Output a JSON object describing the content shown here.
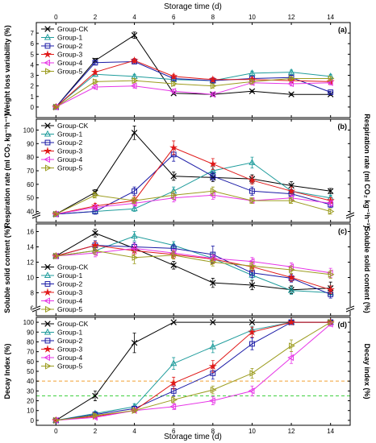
{
  "figure": {
    "top_xlabel": "Storage time (d)",
    "bottom_xlabel": "Storage time (d)"
  },
  "series_styles": [
    {
      "name": "Group-CK",
      "color": "#000000",
      "marker": "x"
    },
    {
      "name": "Group-1",
      "color": "#1f9c9c",
      "marker": "triangle-up"
    },
    {
      "name": "Group-2",
      "color": "#1a1aa6",
      "marker": "square"
    },
    {
      "name": "Group-3",
      "color": "#e01919",
      "marker": "star"
    },
    {
      "name": "Group-4",
      "color": "#e636e6",
      "marker": "triangle-left"
    },
    {
      "name": "Group-5",
      "color": "#9c9c1f",
      "marker": "triangle-right"
    }
  ],
  "chart_data": [
    {
      "type": "line",
      "panel": "(a)",
      "ylabel": "Weight loss variability (%)",
      "x": [
        0,
        2,
        4,
        6,
        8,
        10,
        12,
        14
      ],
      "xlim": [
        -1,
        15
      ],
      "ylim": [
        -1,
        8
      ],
      "yticks": [
        0,
        1,
        2,
        3,
        4,
        5,
        6,
        7
      ],
      "xticks": [
        0,
        2,
        4,
        6,
        8,
        10,
        12,
        14
      ],
      "legend": "top-left",
      "series": [
        {
          "name": "Group-CK",
          "values": [
            0,
            4.4,
            6.8,
            1.3,
            1.2,
            1.5,
            1.2,
            1.2
          ],
          "errors": [
            0.1,
            0.2,
            0.3,
            0.1,
            0.1,
            0.1,
            0.1,
            0.1
          ]
        },
        {
          "name": "Group-1",
          "values": [
            0,
            3.1,
            2.9,
            2.6,
            2.5,
            3.2,
            3.3,
            2.9
          ],
          "errors": [
            0.1,
            0.2,
            0.2,
            0.2,
            0.2,
            0.2,
            0.2,
            0.2
          ]
        },
        {
          "name": "Group-2",
          "values": [
            0,
            4.2,
            4.3,
            2.7,
            2.5,
            2.7,
            2.8,
            1.4
          ],
          "errors": [
            0.1,
            0.2,
            0.2,
            0.2,
            0.2,
            0.2,
            0.2,
            0.1
          ]
        },
        {
          "name": "Group-3",
          "values": [
            0,
            3.3,
            4.4,
            2.9,
            2.6,
            2.6,
            2.5,
            2.4
          ],
          "errors": [
            0.1,
            0.2,
            0.2,
            0.2,
            0.2,
            0.2,
            0.2,
            0.2
          ]
        },
        {
          "name": "Group-4",
          "values": [
            0,
            1.9,
            2.0,
            1.5,
            1.2,
            2.3,
            2.2,
            2.3
          ],
          "errors": [
            0.1,
            0.2,
            0.2,
            0.2,
            0.2,
            0.2,
            0.2,
            0.2
          ]
        },
        {
          "name": "Group-5",
          "values": [
            0,
            2.4,
            2.5,
            2.2,
            2.0,
            2.4,
            2.7,
            2.7
          ],
          "errors": [
            0.1,
            0.2,
            0.2,
            0.2,
            0.2,
            0.2,
            0.2,
            0.2
          ]
        }
      ]
    },
    {
      "type": "line",
      "panel": "(b)",
      "ylabel": "Respiration rate (ml CO₂ kg⁻¹h⁻¹)",
      "ylabel_right": "Respiration rate (ml CO₂ kg⁻¹h⁻¹)",
      "x": [
        0,
        2,
        4,
        6,
        8,
        10,
        12,
        14
      ],
      "xlim": [
        -1,
        15
      ],
      "ylim": [
        32,
        108
      ],
      "axis_break": true,
      "yticks": [
        40,
        50,
        60,
        70,
        80,
        90,
        100
      ],
      "legend": "top-left",
      "series": [
        {
          "name": "Group-CK",
          "values": [
            38,
            54,
            98,
            66,
            65,
            64,
            59,
            55
          ],
          "errors": [
            1,
            2,
            5,
            3,
            3,
            3,
            3,
            2
          ]
        },
        {
          "name": "Group-1",
          "values": [
            38,
            40,
            42,
            55,
            70,
            76,
            55,
            50
          ],
          "errors": [
            1,
            2,
            2,
            3,
            3,
            4,
            3,
            2
          ]
        },
        {
          "name": "Group-2",
          "values": [
            38,
            40,
            55,
            82,
            66,
            55,
            53,
            45
          ],
          "errors": [
            1,
            2,
            3,
            5,
            3,
            3,
            3,
            2
          ]
        },
        {
          "name": "Group-3",
          "values": [
            38,
            44,
            48,
            87,
            75,
            63,
            55,
            48
          ],
          "errors": [
            1,
            2,
            3,
            5,
            4,
            3,
            3,
            2
          ]
        },
        {
          "name": "Group-4",
          "values": [
            38,
            43,
            46,
            50,
            52,
            48,
            50,
            46
          ],
          "errors": [
            1,
            2,
            2,
            3,
            3,
            2,
            2,
            2
          ]
        },
        {
          "name": "Group-5",
          "values": [
            38,
            52,
            48,
            52,
            55,
            48,
            48,
            40
          ],
          "errors": [
            1,
            2,
            2,
            3,
            3,
            2,
            2,
            2
          ]
        }
      ]
    },
    {
      "type": "line",
      "panel": "(c)",
      "ylabel": "Soluble solid content (%)",
      "ylabel_right": "Soluble solid content (%)",
      "x": [
        0,
        2,
        4,
        6,
        8,
        10,
        12,
        14
      ],
      "xlim": [
        -1,
        15
      ],
      "ylim": [
        5,
        17
      ],
      "axis_break": true,
      "yticks": [
        6,
        8,
        10,
        12,
        14,
        16
      ],
      "legend": "bottom-left",
      "series": [
        {
          "name": "Group-CK",
          "values": [
            12.8,
            15.8,
            13.8,
            11.6,
            9.3,
            9.0,
            8.4,
            8.6
          ],
          "errors": [
            0.3,
            0.5,
            0.5,
            0.5,
            0.6,
            0.6,
            0.5,
            0.8
          ]
        },
        {
          "name": "Group-1",
          "values": [
            12.8,
            13.5,
            15.4,
            14.2,
            12.5,
            10.3,
            8.3,
            8.0
          ],
          "errors": [
            0.3,
            0.5,
            0.6,
            0.5,
            0.6,
            0.5,
            0.5,
            0.5
          ]
        },
        {
          "name": "Group-2",
          "values": [
            12.8,
            14.2,
            14.0,
            13.8,
            13.0,
            10.6,
            9.9,
            7.8
          ],
          "errors": [
            0.3,
            0.6,
            0.6,
            0.5,
            1.1,
            0.6,
            0.5,
            0.5
          ]
        },
        {
          "name": "Group-3",
          "values": [
            12.8,
            14.2,
            13.5,
            13.0,
            12.4,
            11.4,
            10.0,
            8.4
          ],
          "errors": [
            0.3,
            0.5,
            0.5,
            0.5,
            0.6,
            0.6,
            0.5,
            0.5
          ]
        },
        {
          "name": "Group-4",
          "values": [
            12.8,
            13.2,
            13.8,
            13.2,
            12.5,
            12.1,
            11.4,
            10.6
          ],
          "errors": [
            0.3,
            0.5,
            0.6,
            0.5,
            0.5,
            0.5,
            0.5,
            0.6
          ]
        },
        {
          "name": "Group-5",
          "values": [
            12.8,
            13.5,
            12.6,
            12.9,
            12.0,
            11.5,
            11.0,
            10.4
          ],
          "errors": [
            0.3,
            0.5,
            0.8,
            0.5,
            0.5,
            0.5,
            0.5,
            0.5
          ]
        }
      ]
    },
    {
      "type": "line",
      "panel": "(d)",
      "ylabel": "Decay Index (%)",
      "ylabel_right": "Decay index (%)",
      "x": [
        0,
        2,
        4,
        6,
        8,
        10,
        12,
        14
      ],
      "xlim": [
        -1,
        15
      ],
      "ylim": [
        -5,
        105
      ],
      "yticks": [
        0,
        10,
        20,
        30,
        40,
        50,
        60,
        70,
        80,
        90,
        100
      ],
      "legend": "top-left",
      "hlines": [
        {
          "y": 40,
          "color": "#f0a030"
        },
        {
          "y": 25,
          "color": "#40d040"
        }
      ],
      "series": [
        {
          "name": "Group-CK",
          "values": [
            0,
            25,
            79,
            100,
            100,
            100,
            100,
            100
          ],
          "errors": [
            0,
            5,
            10,
            0,
            0,
            0,
            0,
            0
          ]
        },
        {
          "name": "Group-1",
          "values": [
            0,
            7,
            14,
            58,
            75,
            92,
            100,
            100
          ],
          "errors": [
            0,
            2,
            3,
            6,
            6,
            4,
            0,
            0
          ]
        },
        {
          "name": "Group-2",
          "values": [
            0,
            6,
            12,
            30,
            48,
            78,
            100,
            100
          ],
          "errors": [
            0,
            2,
            2,
            5,
            6,
            6,
            0,
            0
          ]
        },
        {
          "name": "Group-3",
          "values": [
            0,
            4,
            10,
            38,
            55,
            90,
            100,
            100
          ],
          "errors": [
            0,
            2,
            2,
            6,
            6,
            5,
            0,
            0
          ]
        },
        {
          "name": "Group-4",
          "values": [
            0,
            3,
            10,
            14,
            20,
            30,
            64,
            98
          ],
          "errors": [
            0,
            1,
            2,
            3,
            4,
            5,
            6,
            2
          ]
        },
        {
          "name": "Group-5",
          "values": [
            0,
            5,
            10,
            21,
            31,
            48,
            76,
            100
          ],
          "errors": [
            0,
            1,
            2,
            3,
            4,
            5,
            6,
            0
          ]
        }
      ]
    }
  ]
}
